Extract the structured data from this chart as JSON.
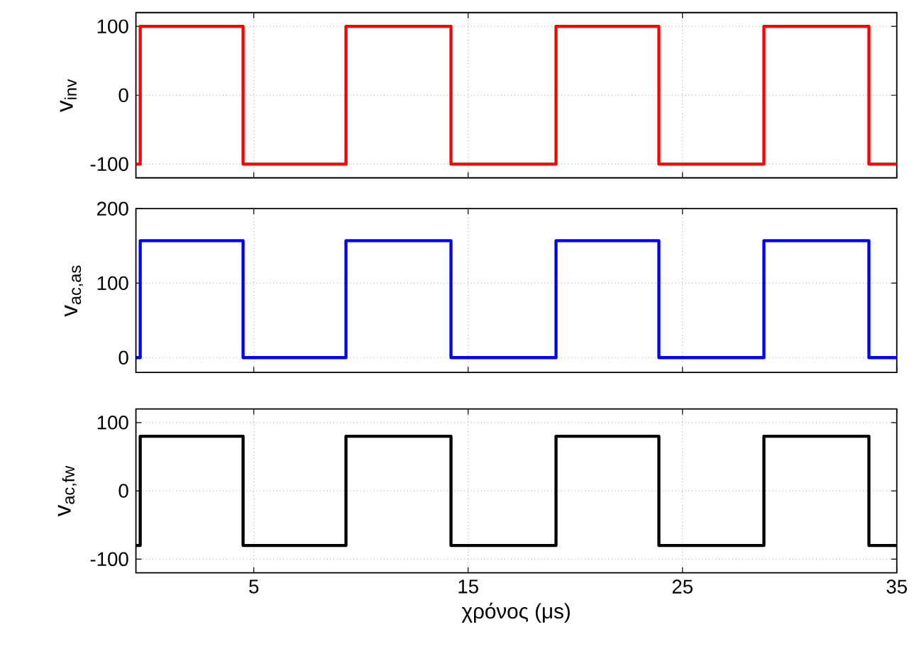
{
  "chart_data": [
    {
      "type": "step",
      "ylabel": "v$_{inv}$",
      "x": [
        -0.5,
        -0.3,
        4.5,
        9.3,
        14.2,
        19.1,
        23.9,
        28.8,
        33.7,
        35
      ],
      "series": [
        {
          "color": "#ff0000",
          "values": [
            -100,
            100,
            -100,
            100,
            -100,
            100,
            -100,
            100,
            -100,
            -100
          ]
        }
      ],
      "xlim": [
        -0.5,
        35
      ],
      "ylim": [
        -120,
        120
      ],
      "xticks": [
        5,
        15,
        25,
        35
      ],
      "yticks": [
        -100,
        0,
        100
      ],
      "grid": true,
      "tick_labels": "y"
    },
    {
      "type": "step",
      "ylabel": "v$_{ac,as}$",
      "x": [
        -0.5,
        -0.3,
        4.5,
        9.3,
        14.2,
        19.1,
        23.9,
        28.8,
        33.7,
        35
      ],
      "series": [
        {
          "color": "#0000ff",
          "values": [
            0,
            157,
            0,
            157,
            0,
            157,
            0,
            157,
            0,
            0
          ]
        }
      ],
      "xlim": [
        -0.5,
        35
      ],
      "ylim": [
        -20,
        200
      ],
      "xticks": [
        5,
        15,
        25,
        35
      ],
      "yticks": [
        0,
        100,
        200
      ],
      "grid": true,
      "tick_labels": "y"
    },
    {
      "type": "step",
      "ylabel": "v$_{ac,fw}$",
      "xlabel": "χρόνος (μs)",
      "x": [
        -0.5,
        -0.3,
        4.5,
        9.3,
        14.2,
        19.1,
        23.9,
        28.8,
        33.7,
        35
      ],
      "series": [
        {
          "color": "#000000",
          "values": [
            -80,
            80,
            -80,
            80,
            -80,
            80,
            -80,
            80,
            -80,
            -80
          ]
        }
      ],
      "xlim": [
        -0.5,
        35
      ],
      "ylim": [
        -120,
        120
      ],
      "xticks": [
        5,
        15,
        25,
        35
      ],
      "yticks": [
        -100,
        0,
        100
      ],
      "grid": true
    }
  ]
}
